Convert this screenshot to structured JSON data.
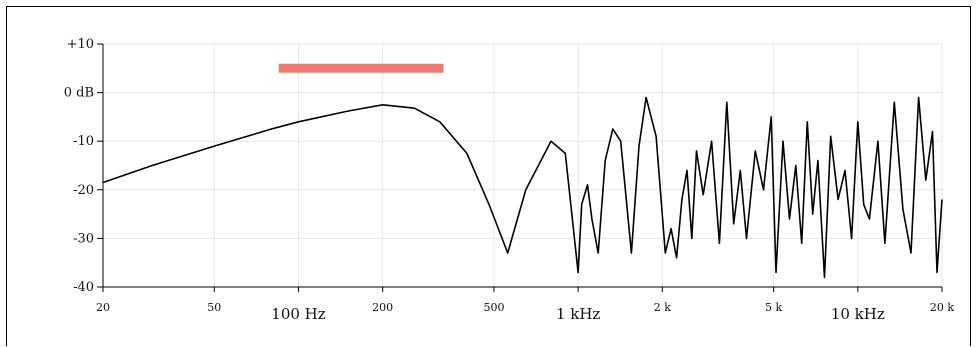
{
  "chart_data": {
    "type": "line",
    "x_scale": "log",
    "xlim": [
      20,
      20000
    ],
    "ylim": [
      -40,
      10
    ],
    "grid": true,
    "y_ticks": [
      {
        "value": 10,
        "label": "+10"
      },
      {
        "value": 0,
        "label": "0 dB"
      },
      {
        "value": -10,
        "label": "-10"
      },
      {
        "value": -20,
        "label": "-20"
      },
      {
        "value": -30,
        "label": "-30"
      },
      {
        "value": -40,
        "label": "-40"
      }
    ],
    "x_ticks": [
      {
        "value": 20,
        "label": "20",
        "size": "small"
      },
      {
        "value": 50,
        "label": "50",
        "size": "small"
      },
      {
        "value": 100,
        "label": "100 Hz",
        "size": "big"
      },
      {
        "value": 200,
        "label": "200",
        "size": "small"
      },
      {
        "value": 500,
        "label": "500",
        "size": "small"
      },
      {
        "value": 1000,
        "label": "1 kHz",
        "size": "big"
      },
      {
        "value": 2000,
        "label": "2 k",
        "size": "small"
      },
      {
        "value": 5000,
        "label": "5 k",
        "size": "small"
      },
      {
        "value": 10000,
        "label": "10 kHz",
        "size": "big"
      },
      {
        "value": 20000,
        "label": "20 k",
        "size": "small"
      }
    ],
    "highlight_band": {
      "x_start": 85,
      "x_end": 330,
      "y": 5,
      "color": "#f07a73"
    },
    "series": [
      {
        "color": "#000000",
        "x": [
          20,
          30,
          50,
          80,
          100,
          150,
          200,
          260,
          320,
          400,
          480,
          560,
          650,
          800,
          900,
          1000,
          1030,
          1080,
          1120,
          1180,
          1250,
          1330,
          1420,
          1550,
          1650,
          1750,
          1900,
          2050,
          2150,
          2250,
          2350,
          2450,
          2550,
          2650,
          2800,
          3000,
          3200,
          3400,
          3600,
          3800,
          4000,
          4300,
          4600,
          4900,
          5100,
          5400,
          5700,
          6000,
          6300,
          6600,
          6900,
          7200,
          7600,
          8000,
          8500,
          9000,
          9500,
          10000,
          10500,
          11000,
          11800,
          12500,
          13500,
          14500,
          15500,
          16500,
          17500,
          18500,
          19200,
          20000
        ],
        "y": [
          -18.5,
          -15,
          -11,
          -7.5,
          -6,
          -3.8,
          -2.5,
          -3.2,
          -6,
          -12.5,
          -23,
          -33,
          -20,
          -10,
          -12.5,
          -37,
          -23,
          -19,
          -26,
          -33,
          -14,
          -7.5,
          -10,
          -33,
          -11,
          -1,
          -9,
          -33,
          -28,
          -34,
          -22,
          -16,
          -30,
          -12,
          -21,
          -10,
          -31,
          -2,
          -27,
          -16,
          -30,
          -12,
          -20,
          -5,
          -37,
          -10,
          -26,
          -15,
          -31,
          -6,
          -25,
          -14,
          -38,
          -9,
          -22,
          -16,
          -30,
          -6,
          -23,
          -26,
          -10,
          -31,
          -2,
          -24,
          -33,
          -1,
          -18,
          -8,
          -37,
          -22
        ]
      }
    ]
  }
}
